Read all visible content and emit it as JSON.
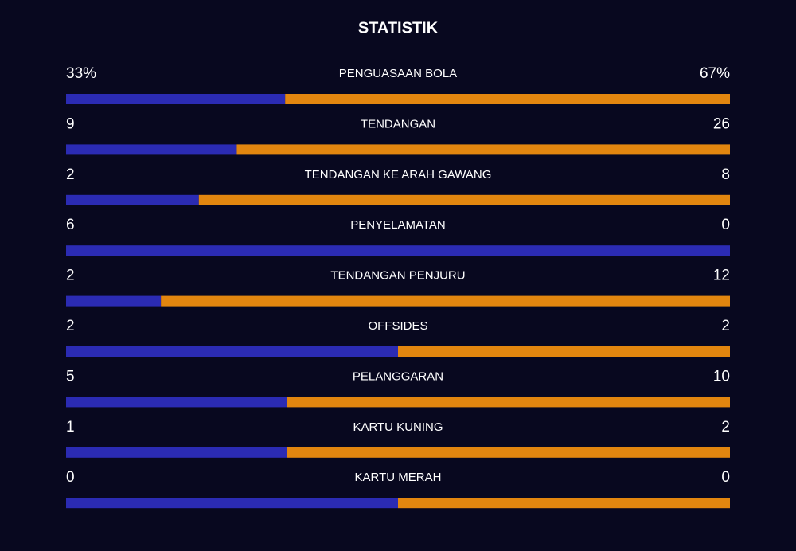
{
  "title": "STATISTIK",
  "home_color": "#2b2bb3",
  "away_color": "#e2860f",
  "stats": [
    {
      "label": "PENGUASAAN BOLA",
      "home": 33,
      "away": 67,
      "home_label": "33%",
      "away_label": "67%"
    },
    {
      "label": "TENDANGAN",
      "home": 9,
      "away": 26
    },
    {
      "label": "TENDANGAN KE ARAH GAWANG",
      "home": 2,
      "away": 8
    },
    {
      "label": "PENYELAMATAN",
      "home": 6,
      "away": 0
    },
    {
      "label": "TENDANGAN PENJURU",
      "home": 2,
      "away": 12
    },
    {
      "label": "OFFSIDES",
      "home": 2,
      "away": 2
    },
    {
      "label": "PELANGGARAN",
      "home": 5,
      "away": 10
    },
    {
      "label": "KARTU KUNING",
      "home": 1,
      "away": 2
    },
    {
      "label": "KARTU MERAH",
      "home": 0,
      "away": 0
    }
  ]
}
